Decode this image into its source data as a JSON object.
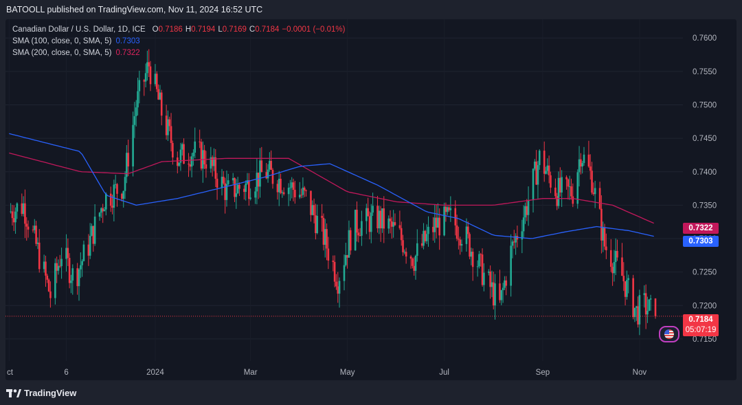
{
  "header": {
    "published_text": "BATOOLL published on TradingView.com, Nov 11, 2024 16:52 UTC"
  },
  "legend": {
    "symbol_title": "Canadian Dollar / U.S. Dollar, 1D, ICE",
    "open_label": "O",
    "open_value": "0.7186",
    "high_label": "H",
    "high_value": "0.7194",
    "low_label": "L",
    "low_value": "0.7169",
    "close_label": "C",
    "close_value": "0.7184",
    "change": "−0.0001 (−0.01%)",
    "sma100_label": "SMA (100, close, 0, SMA, 5)",
    "sma100_value": "0.7303",
    "sma200_label": "SMA (200, close, 0, SMA, 5)",
    "sma200_value": "0.7322"
  },
  "price_tags": {
    "sma200": "0.7322",
    "sma100": "0.7303",
    "last_price": "0.7184",
    "countdown": "05:07:19"
  },
  "colors": {
    "background": "#131722",
    "up": "#22ab94",
    "down": "#f23645",
    "sma100": "#2962ff",
    "sma200": "#c2185b",
    "last_price_line": "#f23645"
  },
  "footer": {
    "brand": "TradingView"
  },
  "chart_data": {
    "type": "candlestick",
    "y_ticks": [
      "0.7600",
      "0.7550",
      "0.7500",
      "0.7450",
      "0.7400",
      "0.7350",
      "0.7300",
      "0.7250",
      "0.7200",
      "0.7150"
    ],
    "x_ticks": [
      "ct",
      "6",
      "2024",
      "Mar",
      "May",
      "Jul",
      "Sep",
      "Nov"
    ],
    "ylim": [
      0.7117,
      0.7628
    ],
    "anchors": [
      {
        "date": "2023-10-01",
        "price": 0.734
      },
      {
        "date": "2023-10-10",
        "price": 0.735
      },
      {
        "date": "2023-10-18",
        "price": 0.729
      },
      {
        "date": "2023-10-27",
        "price": 0.7215
      },
      {
        "date": "2023-11-03",
        "price": 0.728
      },
      {
        "date": "2023-11-11",
        "price": 0.724
      },
      {
        "date": "2023-11-20",
        "price": 0.729
      },
      {
        "date": "2023-11-30",
        "price": 0.736
      },
      {
        "date": "2023-12-12",
        "price": 0.738
      },
      {
        "date": "2023-12-20",
        "price": 0.75
      },
      {
        "date": "2023-12-28",
        "price": 0.756
      },
      {
        "date": "2024-01-06",
        "price": 0.748
      },
      {
        "date": "2024-01-15",
        "price": 0.742
      },
      {
        "date": "2024-01-24",
        "price": 0.743
      },
      {
        "date": "2024-02-02",
        "price": 0.742
      },
      {
        "date": "2024-02-15",
        "price": 0.737
      },
      {
        "date": "2024-02-28",
        "price": 0.738
      },
      {
        "date": "2024-03-10",
        "price": 0.74
      },
      {
        "date": "2024-03-25",
        "price": 0.738
      },
      {
        "date": "2024-04-05",
        "price": 0.736
      },
      {
        "date": "2024-04-15",
        "price": 0.731
      },
      {
        "date": "2024-04-25",
        "price": 0.724
      },
      {
        "date": "2024-05-05",
        "price": 0.732
      },
      {
        "date": "2024-05-20",
        "price": 0.733
      },
      {
        "date": "2024-06-01",
        "price": 0.731
      },
      {
        "date": "2024-06-12",
        "price": 0.727
      },
      {
        "date": "2024-06-25",
        "price": 0.732
      },
      {
        "date": "2024-07-05",
        "price": 0.733
      },
      {
        "date": "2024-07-15",
        "price": 0.73
      },
      {
        "date": "2024-07-25",
        "price": 0.725
      },
      {
        "date": "2024-08-05",
        "price": 0.72
      },
      {
        "date": "2024-08-12",
        "price": 0.728
      },
      {
        "date": "2024-08-22",
        "price": 0.735
      },
      {
        "date": "2024-08-30",
        "price": 0.742
      },
      {
        "date": "2024-09-10",
        "price": 0.737
      },
      {
        "date": "2024-09-20",
        "price": 0.737
      },
      {
        "date": "2024-09-25",
        "price": 0.743
      },
      {
        "date": "2024-10-02",
        "price": 0.739
      },
      {
        "date": "2024-10-10",
        "price": 0.729
      },
      {
        "date": "2024-10-20",
        "price": 0.725
      },
      {
        "date": "2024-10-30",
        "price": 0.719
      },
      {
        "date": "2024-11-04",
        "price": 0.72
      },
      {
        "date": "2024-11-11",
        "price": 0.7184
      }
    ],
    "sma100": [
      {
        "date": "2023-10-01",
        "price": 0.7457
      },
      {
        "date": "2023-11-15",
        "price": 0.743
      },
      {
        "date": "2023-12-01",
        "price": 0.7365
      },
      {
        "date": "2023-12-20",
        "price": 0.735
      },
      {
        "date": "2024-01-15",
        "price": 0.736
      },
      {
        "date": "2024-02-10",
        "price": 0.7375
      },
      {
        "date": "2024-03-10",
        "price": 0.7392
      },
      {
        "date": "2024-04-01",
        "price": 0.7408
      },
      {
        "date": "2024-04-20",
        "price": 0.7412
      },
      {
        "date": "2024-05-20",
        "price": 0.738
      },
      {
        "date": "2024-06-20",
        "price": 0.734
      },
      {
        "date": "2024-07-10",
        "price": 0.733
      },
      {
        "date": "2024-08-01",
        "price": 0.7305
      },
      {
        "date": "2024-08-25",
        "price": 0.73
      },
      {
        "date": "2024-09-15",
        "price": 0.731
      },
      {
        "date": "2024-10-05",
        "price": 0.7318
      },
      {
        "date": "2024-10-25",
        "price": 0.7312
      },
      {
        "date": "2024-11-11",
        "price": 0.7303
      }
    ],
    "sma200": [
      {
        "date": "2023-10-01",
        "price": 0.7428
      },
      {
        "date": "2023-11-15",
        "price": 0.74
      },
      {
        "date": "2023-12-15",
        "price": 0.7397
      },
      {
        "date": "2024-01-05",
        "price": 0.7415
      },
      {
        "date": "2024-02-15",
        "price": 0.742
      },
      {
        "date": "2024-03-25",
        "price": 0.742
      },
      {
        "date": "2024-05-01",
        "price": 0.737
      },
      {
        "date": "2024-06-01",
        "price": 0.7355
      },
      {
        "date": "2024-07-01",
        "price": 0.735
      },
      {
        "date": "2024-08-01",
        "price": 0.735
      },
      {
        "date": "2024-09-01",
        "price": 0.736
      },
      {
        "date": "2024-09-20",
        "price": 0.736
      },
      {
        "date": "2024-10-15",
        "price": 0.735
      },
      {
        "date": "2024-11-11",
        "price": 0.7322
      }
    ],
    "last_price": 0.7184
  }
}
